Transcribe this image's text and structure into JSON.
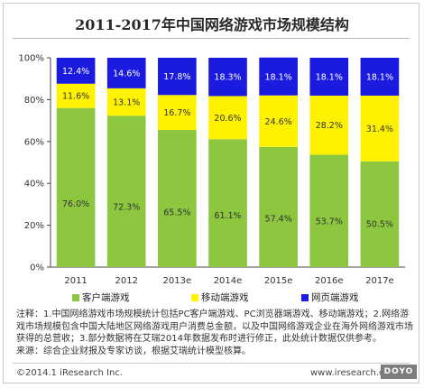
{
  "title": "2011-2017年中国网络游戏市场规模结构",
  "colors": {
    "client": "#8DC63F",
    "mobile": "#FFF200",
    "web": "#1B1BE0"
  },
  "chart_data": {
    "type": "bar",
    "stacked": true,
    "categories": [
      "2011",
      "2012",
      "2013e",
      "2014e",
      "2015e",
      "2016e",
      "2017e"
    ],
    "series": [
      {
        "name": "客户端游戏",
        "values": [
          76.0,
          72.3,
          65.5,
          61.1,
          57.4,
          53.7,
          50.5
        ],
        "labels": [
          "76.0%",
          "72.3%",
          "65.5%",
          "61.1%",
          "57.4%",
          "53.7%",
          "50.5%"
        ],
        "color": "#8DC63F"
      },
      {
        "name": "移动端游戏",
        "values": [
          11.6,
          13.1,
          16.7,
          20.6,
          24.6,
          28.2,
          31.4
        ],
        "labels": [
          "11.6%",
          "13.1%",
          "16.7%",
          "20.6%",
          "24.6%",
          "28.2%",
          "31.4%"
        ],
        "color": "#FFF200"
      },
      {
        "name": "网页端游戏",
        "values": [
          12.4,
          14.6,
          17.8,
          18.3,
          18.1,
          18.1,
          18.1
        ],
        "labels": [
          "12.4%",
          "14.6%",
          "17.8%",
          "18.3%",
          "18.1%",
          "18.1%",
          "18.1%"
        ],
        "color": "#1B1BE0"
      }
    ],
    "yticks": [
      "0%",
      "20%",
      "40%",
      "60%",
      "80%",
      "100%"
    ],
    "ylim": [
      0,
      100
    ],
    "grid": false,
    "legend": "bottom"
  },
  "legend": {
    "client": "客户端游戏",
    "mobile": "移动端游戏",
    "web": "网页端游戏"
  },
  "notes": {
    "line1": "注释：1.中国网络游戏市场规模统计包括PC客户端游戏、PC浏览器端游戏、移动端游戏；2.网络游戏市场规模包含中国大陆地区网络游戏用户消费总金额，以及中国网络游戏企业在海外网络游戏市场获得的总营收；3.部分数据将在艾瑞2014年数据发布时进行修正，此处统计数据仅供参考。",
    "source": "来源：综合企业财报及专家访谈，根据艾瑞统计模型核算。"
  },
  "footer": {
    "copyright": "©2014.1 iResearch Inc.",
    "url": "www.iresearch.com.cn",
    "watermark": "DOYO"
  }
}
